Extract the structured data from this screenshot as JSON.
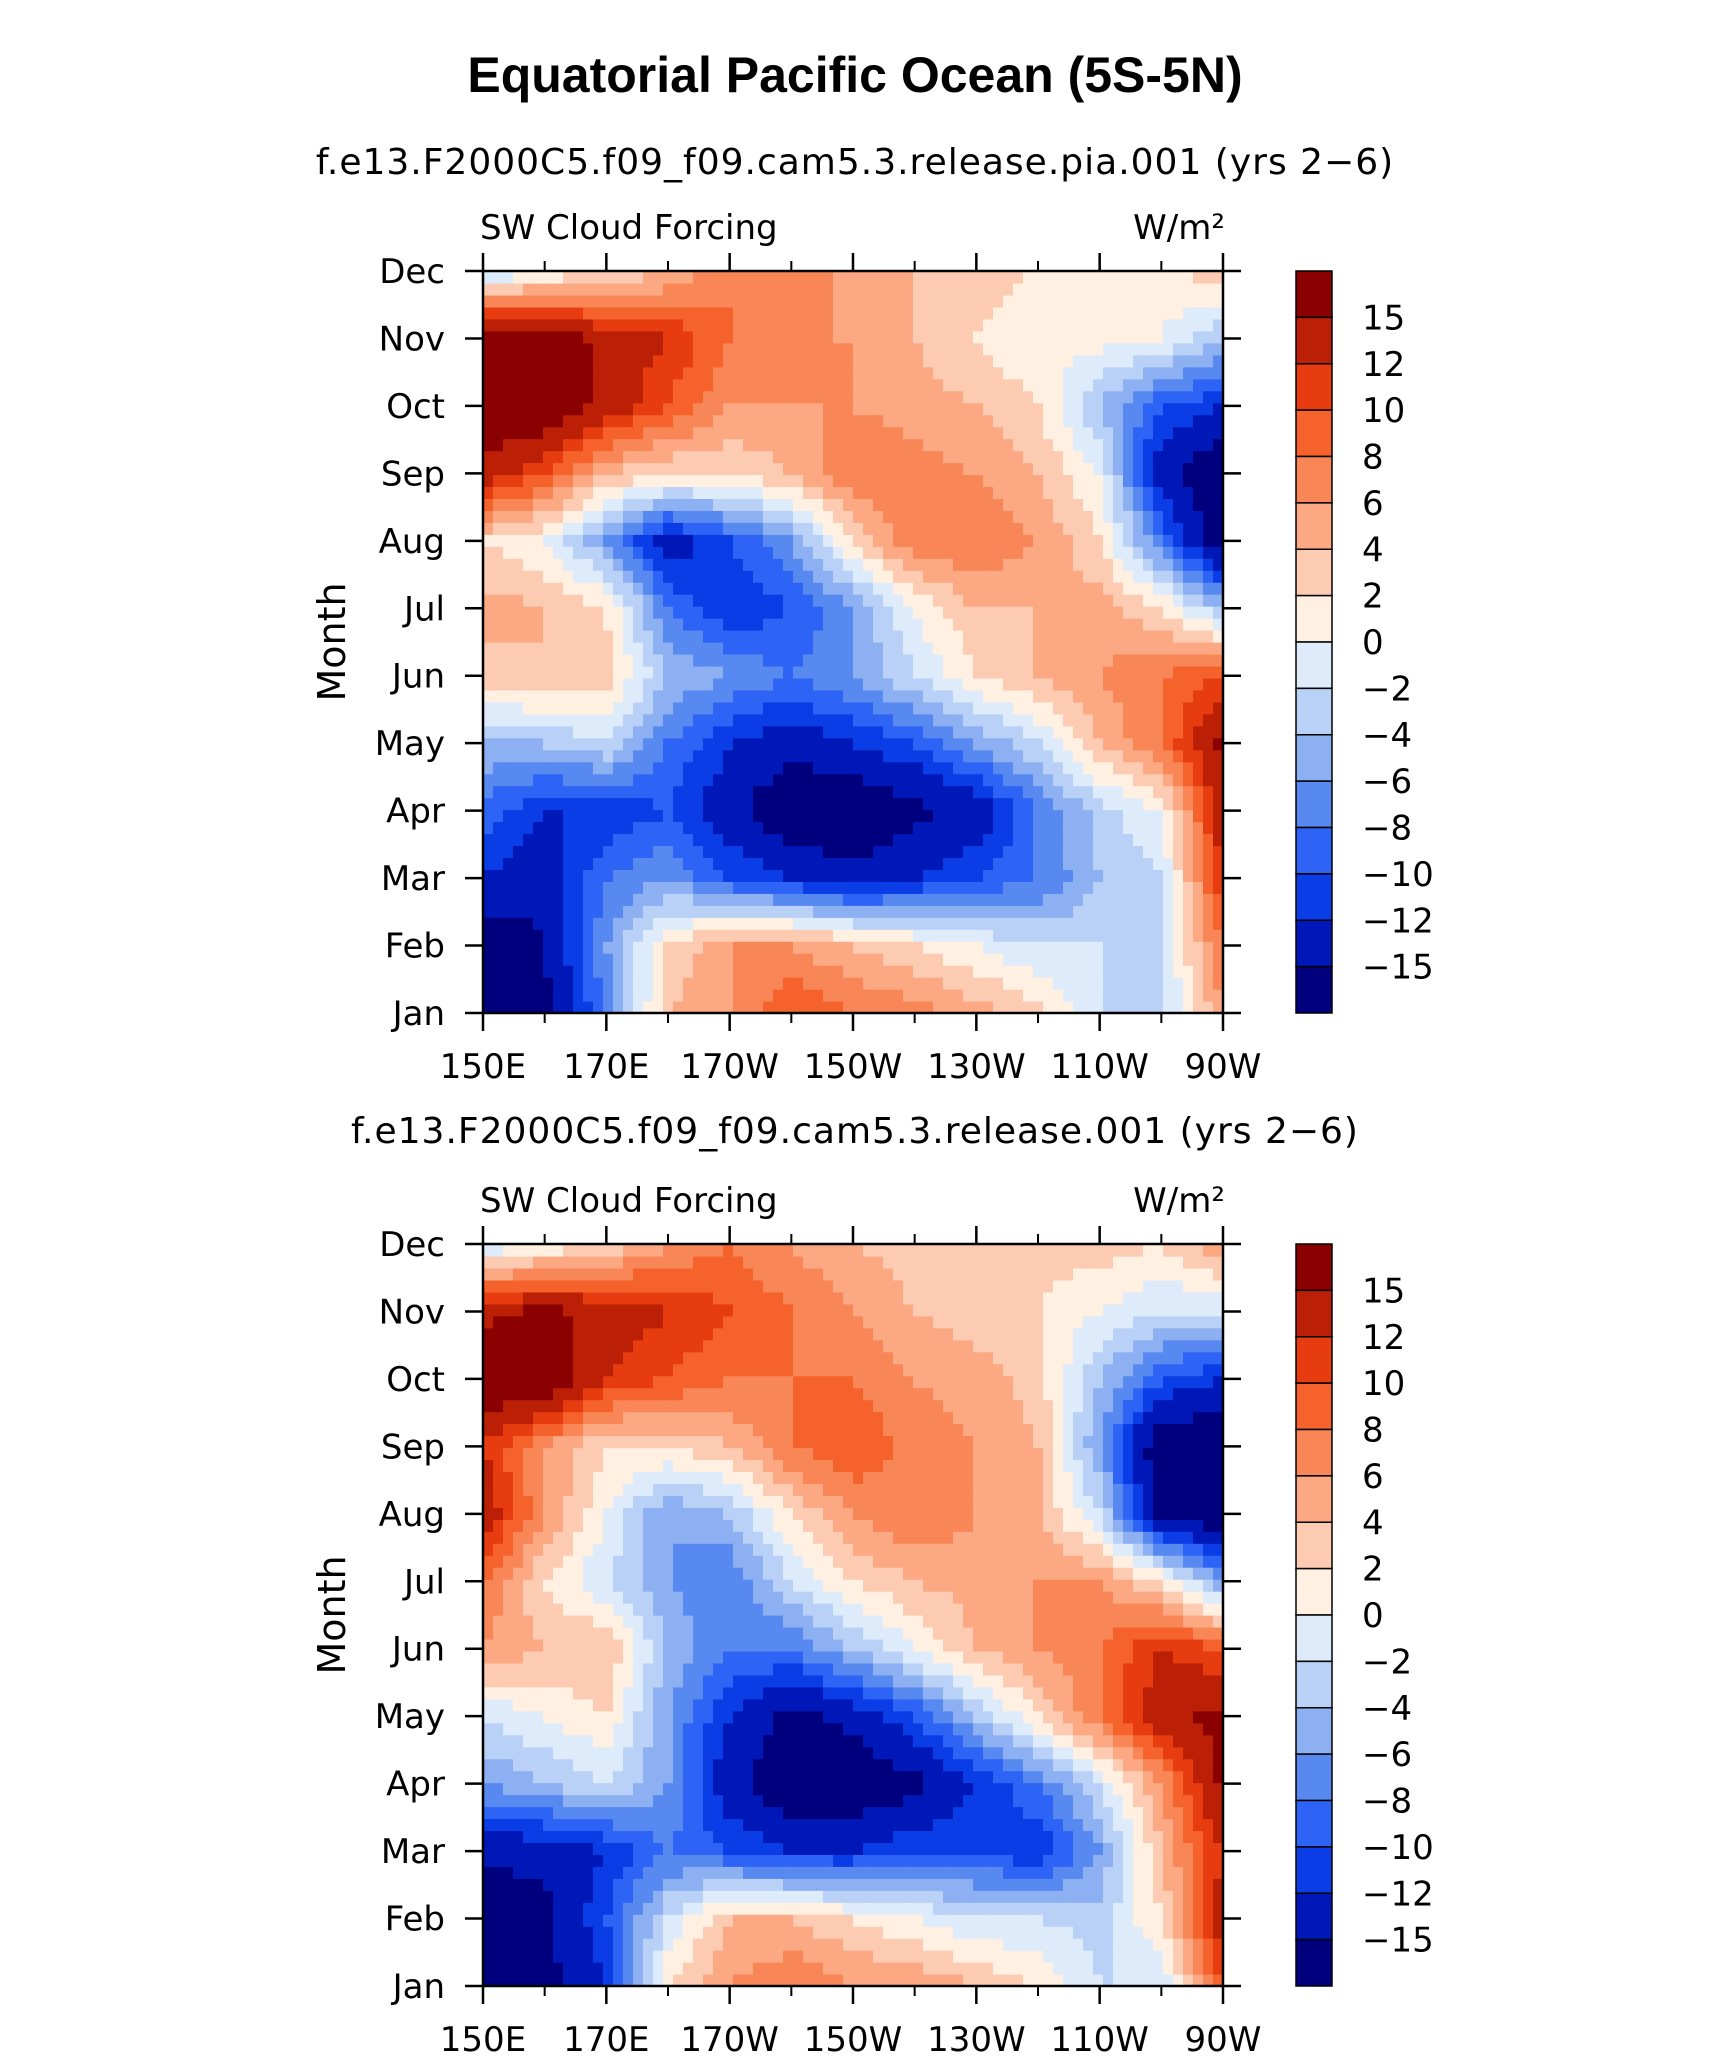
{
  "figure": {
    "title": "Equatorial Pacific Ocean (5S-5N)"
  },
  "chart_data": [
    {
      "type": "heatmap",
      "subtitle": "f.e13.F2000C5.f09_f09.cam5.3.release.pia.001 (yrs 2−6)",
      "left_label": "SW Cloud Forcing",
      "right_label": "W/m²",
      "ylabel": "Month",
      "xlabel": "",
      "x_tick_labels": [
        "150E",
        "170E",
        "170W",
        "150W",
        "130W",
        "110W",
        "90W"
      ],
      "y_tick_labels": [
        "Jan",
        "Feb",
        "Mar",
        "Apr",
        "May",
        "Jun",
        "Jul",
        "Aug",
        "Sep",
        "Oct",
        "Nov",
        "Dec"
      ],
      "colorbar_labels": [
        "15",
        "12",
        "10",
        "8",
        "6",
        "4",
        "2",
        "0",
        "−2",
        "−4",
        "−6",
        "−8",
        "−10",
        "−12",
        "−15"
      ],
      "grid": false,
      "legend": "colorbar-right",
      "values_note_columns_longitude": [
        150,
        160,
        170,
        180,
        190,
        200,
        210,
        220,
        230,
        240,
        250,
        260,
        270
      ],
      "values": [
        [
          -18,
          -16,
          -8,
          4,
          6,
          10,
          8,
          7,
          5,
          3,
          -2,
          -3,
          6
        ],
        [
          -18,
          -15,
          -6,
          2,
          6,
          6,
          4,
          2,
          0,
          -2,
          -2,
          -2,
          8
        ],
        [
          -12,
          -14,
          -8,
          -6,
          -10,
          -12,
          -14,
          -12,
          -10,
          -8,
          -4,
          -2,
          12
        ],
        [
          -9,
          -12,
          -12,
          -10,
          -14,
          -18,
          -18,
          -16,
          -14,
          -8,
          -3,
          0,
          14
        ],
        [
          -4,
          -4,
          -2,
          -8,
          -12,
          -14,
          -12,
          -10,
          -6,
          -2,
          4,
          8,
          16
        ],
        [
          3,
          4,
          3,
          -4,
          -6,
          -8,
          -6,
          -2,
          2,
          4,
          6,
          8,
          10
        ],
        [
          5,
          4,
          2,
          -8,
          -12,
          -10,
          -6,
          0,
          4,
          4,
          5,
          2,
          -4
        ],
        [
          2,
          0,
          -6,
          -14,
          -10,
          -6,
          2,
          8,
          8,
          6,
          2,
          -8,
          -18
        ],
        [
          14,
          10,
          4,
          2,
          2,
          4,
          8,
          7,
          6,
          4,
          0,
          -14,
          -18
        ],
        [
          18,
          18,
          14,
          10,
          6,
          6,
          6,
          5,
          4,
          2,
          -4,
          -10,
          -12
        ],
        [
          18,
          18,
          14,
          12,
          8,
          6,
          6,
          4,
          2,
          0,
          1,
          0,
          -4
        ],
        [
          -3,
          0,
          2,
          4,
          8,
          8,
          5,
          4,
          3,
          2,
          2,
          1,
          4
        ]
      ]
    },
    {
      "type": "heatmap",
      "subtitle": "f.e13.F2000C5.f09_f09.cam5.3.release.001 (yrs 2−6)",
      "left_label": "SW Cloud Forcing",
      "right_label": "W/m²",
      "ylabel": "Month",
      "xlabel": "",
      "x_tick_labels": [
        "150E",
        "170E",
        "170W",
        "150W",
        "130W",
        "110W",
        "90W"
      ],
      "y_tick_labels": [
        "Jan",
        "Feb",
        "Mar",
        "Apr",
        "May",
        "Jun",
        "Jul",
        "Aug",
        "Sep",
        "Oct",
        "Nov",
        "Dec"
      ],
      "colorbar_labels": [
        "15",
        "12",
        "10",
        "8",
        "6",
        "4",
        "2",
        "0",
        "−2",
        "−4",
        "−6",
        "−8",
        "−10",
        "−12",
        "−15"
      ],
      "grid": false,
      "legend": "colorbar-right",
      "values_note_columns_longitude": [
        150,
        160,
        170,
        180,
        190,
        200,
        210,
        220,
        230,
        240,
        250,
        260,
        270
      ],
      "values": [
        [
          -18,
          -16,
          -12,
          2,
          6,
          8,
          6,
          6,
          4,
          2,
          -2,
          -2,
          10
        ],
        [
          -18,
          -16,
          -10,
          -2,
          4,
          4,
          2,
          0,
          -2,
          -2,
          -3,
          2,
          14
        ],
        [
          -14,
          -14,
          -12,
          -8,
          -10,
          -12,
          -12,
          -10,
          -10,
          -12,
          -6,
          4,
          12
        ],
        [
          -6,
          -4,
          -2,
          -6,
          -14,
          -18,
          -18,
          -16,
          -12,
          -8,
          -2,
          6,
          16
        ],
        [
          -2,
          0,
          2,
          -6,
          -12,
          -16,
          -14,
          -10,
          -4,
          2,
          8,
          14,
          16
        ],
        [
          6,
          4,
          4,
          -4,
          -8,
          -8,
          -4,
          0,
          4,
          6,
          8,
          12,
          10
        ],
        [
          8,
          2,
          -2,
          -6,
          -8,
          -2,
          2,
          4,
          5,
          6,
          6,
          2,
          -6
        ],
        [
          14,
          6,
          0,
          -6,
          -4,
          2,
          6,
          8,
          6,
          4,
          -2,
          -16,
          -18
        ],
        [
          12,
          6,
          2,
          2,
          4,
          8,
          10,
          7,
          6,
          4,
          -6,
          -18,
          -18
        ],
        [
          18,
          18,
          12,
          10,
          8,
          8,
          8,
          6,
          5,
          3,
          -4,
          -10,
          -12
        ],
        [
          14,
          16,
          14,
          12,
          10,
          8,
          6,
          4,
          3,
          2,
          0,
          -2,
          -2
        ],
        [
          -2,
          0,
          2,
          6,
          8,
          6,
          4,
          3,
          3,
          3,
          3,
          2,
          6
        ]
      ]
    }
  ],
  "colormap": [
    "#00007f",
    "#0018b8",
    "#0a3de6",
    "#2e64f5",
    "#5889f0",
    "#8db0f3",
    "#b9d0f7",
    "#ddebfb",
    "#fff0e2",
    "#fdcab2",
    "#fca882",
    "#f98656",
    "#f5622c",
    "#e73c10",
    "#bb1f05",
    "#8b0000"
  ],
  "colormap_thresholds": [
    -15,
    -12,
    -10,
    -8,
    -6,
    -4,
    -2,
    0,
    2,
    4,
    6,
    8,
    10,
    12,
    15
  ]
}
